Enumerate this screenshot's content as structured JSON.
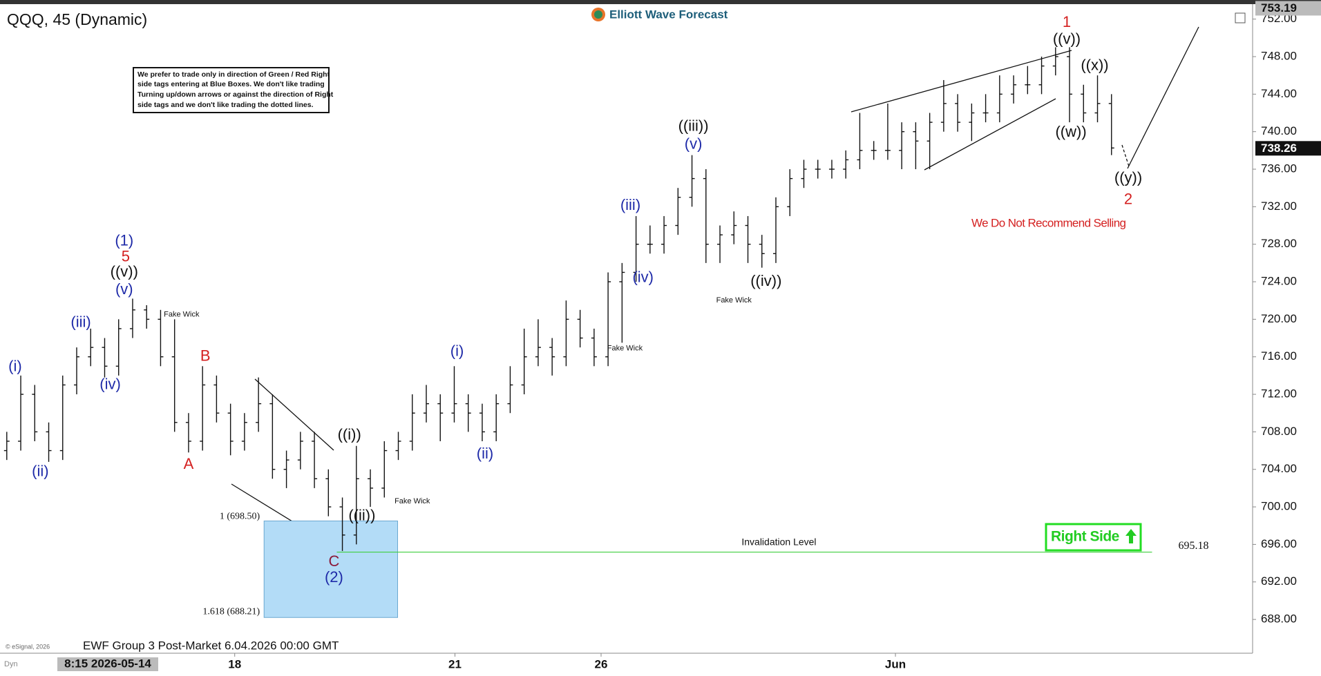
{
  "chart_data": {
    "type": "ohlc",
    "title": "QQQ, 45 (Dynamic)",
    "brand": "Elliott Wave Forecast",
    "footer": "EWF Group 3 Post-Market 6.04.2026 00:00 GMT",
    "copyright": "© eSignal, 2026",
    "cursor_label": "8:15 2026-05-14",
    "mode_label": "Dyn",
    "disclaimer": [
      "We prefer to trade only in direction of Green / Red Right",
      "side tags entering at Blue Boxes. We don't like trading",
      "Turning up/down arrows or against the direction of Right",
      "side tags and we don't like trading the dotted lines."
    ],
    "badge": "Right Side",
    "color": "#111111",
    "open": [
      706,
      707,
      712,
      708,
      706,
      713,
      716,
      717,
      715,
      719,
      721,
      720,
      716,
      709,
      707,
      713,
      710,
      707,
      709,
      711,
      704,
      705,
      707,
      703,
      700,
      697,
      703,
      702,
      706,
      707,
      710,
      711,
      710,
      711,
      710,
      708,
      711,
      713,
      716,
      717,
      716,
      720,
      718,
      716,
      724,
      725,
      728,
      728,
      730,
      733,
      735,
      728,
      729,
      730,
      728,
      727,
      732,
      735,
      736,
      736,
      736,
      737,
      738,
      738,
      738,
      740,
      739,
      741,
      743,
      741,
      742,
      742,
      744,
      745,
      745,
      747,
      748,
      744,
      742,
      743
    ],
    "high": [
      708,
      714,
      713,
      709,
      714,
      717,
      719,
      718,
      720,
      722.2,
      721.5,
      721,
      720,
      710,
      715,
      714,
      711,
      710,
      713.8,
      712,
      706,
      708,
      708,
      704,
      701,
      706.5,
      704,
      707,
      708,
      712,
      713,
      712,
      715,
      712,
      711,
      712,
      715,
      719,
      720,
      718,
      722,
      721,
      719,
      725,
      726,
      731,
      730,
      731,
      734,
      737.5,
      736,
      730,
      731.5,
      731,
      729,
      733,
      736,
      737,
      737,
      737,
      738,
      742,
      739,
      743,
      741,
      741,
      742,
      745.5,
      744,
      743,
      744,
      746,
      746,
      747,
      748,
      749,
      749,
      745,
      746,
      744
    ],
    "low": [
      705,
      706,
      707,
      704.8,
      705,
      712,
      715,
      713.8,
      714,
      718,
      719,
      715,
      708,
      705.8,
      706,
      709,
      705.5,
      706,
      708,
      703,
      702,
      704,
      702,
      699,
      695.3,
      696,
      700,
      701,
      705,
      706,
      709,
      707,
      709,
      708,
      707,
      707,
      710,
      712,
      715,
      714,
      715,
      717,
      715,
      715,
      717.5,
      724,
      727,
      727,
      729,
      732,
      726,
      726,
      728,
      726,
      725.5,
      726,
      731,
      734,
      735,
      735,
      735,
      736,
      737,
      737,
      736,
      736,
      736,
      740,
      740,
      739,
      741,
      741,
      743,
      744,
      744,
      746,
      741,
      741,
      741,
      737.5
    ],
    "close": [
      707,
      712,
      708,
      706,
      713,
      716,
      717,
      715,
      719,
      721,
      720,
      716,
      709,
      707,
      713,
      710,
      707,
      709,
      711,
      704,
      705,
      707,
      703,
      700,
      697,
      703,
      702,
      706,
      707,
      710,
      711,
      710,
      711,
      710,
      708,
      711,
      713,
      716,
      717,
      716,
      720,
      718,
      716,
      724,
      725,
      728,
      728,
      730,
      733,
      735,
      728,
      729,
      730,
      728,
      727,
      732,
      735,
      736,
      736,
      736,
      737,
      738,
      738,
      738,
      740,
      739,
      741,
      743,
      741,
      742,
      742,
      744,
      745,
      745,
      747,
      748,
      744,
      742,
      743,
      738.26
    ],
    "top_price": 753.19,
    "ylim": [
      684.4,
      753.3
    ],
    "yticks": [
      {
        "value": 688,
        "label": "688.00"
      },
      {
        "value": 692,
        "label": "692.00"
      },
      {
        "value": 696,
        "label": "696.00"
      },
      {
        "value": 700,
        "label": "700.00"
      },
      {
        "value": 704,
        "label": "704.00"
      },
      {
        "value": 708,
        "label": "708.00"
      },
      {
        "value": 712,
        "label": "712.00"
      },
      {
        "value": 716,
        "label": "716.00"
      },
      {
        "value": 720,
        "label": "720.00"
      },
      {
        "value": 724,
        "label": "724.00"
      },
      {
        "value": 728,
        "label": "728.00"
      },
      {
        "value": 732,
        "label": "732.00"
      },
      {
        "value": 736,
        "label": "736.00"
      },
      {
        "value": 740,
        "label": "740.00"
      },
      {
        "value": 744,
        "label": "744.00"
      },
      {
        "value": 748,
        "label": "748.00"
      },
      {
        "value": 752,
        "label": "752.00"
      }
    ],
    "xticks": [
      {
        "value": 16.3,
        "label": "18"
      },
      {
        "value": 32.05,
        "label": "21"
      },
      {
        "value": 42.5,
        "label": "26"
      },
      {
        "value": 63.55,
        "label": "Jun"
      }
    ],
    "box": {
      "top": 698.5,
      "top_label": "1 (698.50)",
      "bottom": 688.21,
      "bottom_label": "1.618 (688.21)",
      "x0": 18.4,
      "x1": 27.95,
      "color": "#b3dcf7"
    },
    "invalidation": {
      "value": 695.18,
      "text": "Invalidation Level",
      "x0": 23.6,
      "x1": 81.9,
      "color": "#3ecf3e"
    },
    "annotations": [
      {
        "text": "(i)",
        "x": 0.6,
        "y": 714.9,
        "color": "#1e2aa8"
      },
      {
        "text": "(ii)",
        "x": 2.4,
        "y": 703.7,
        "color": "#1e2aa8"
      },
      {
        "text": "(iii)",
        "x": 5.3,
        "y": 719.6,
        "color": "#1e2aa8"
      },
      {
        "text": "(iv)",
        "x": 7.4,
        "y": 713.0,
        "color": "#1e2aa8"
      },
      {
        "text": "(v)",
        "x": 8.4,
        "y": 723.1,
        "color": "#1e2aa8"
      },
      {
        "text": "((v))",
        "x": 8.4,
        "y": 725.0,
        "color": "#111111"
      },
      {
        "text": "5",
        "x": 8.5,
        "y": 726.6,
        "color": "#d42020"
      },
      {
        "text": "(1)",
        "x": 8.4,
        "y": 728.3,
        "color": "#1e2aa8"
      },
      {
        "text": "Fake Wick",
        "x": 12.5,
        "y": 720.5,
        "color": "#111111",
        "small": true
      },
      {
        "text": "B",
        "x": 14.2,
        "y": 716.0,
        "color": "#d42020"
      },
      {
        "text": "A",
        "x": 13.0,
        "y": 704.5,
        "color": "#d42020"
      },
      {
        "text": "((i))",
        "x": 24.5,
        "y": 707.6,
        "color": "#111111"
      },
      {
        "text": "((ii))",
        "x": 25.4,
        "y": 699.0,
        "color": "#111111"
      },
      {
        "text": "C",
        "x": 23.4,
        "y": 694.1,
        "color": "#8b1a3a"
      },
      {
        "text": "(2)",
        "x": 23.4,
        "y": 692.4,
        "color": "#1e2aa8"
      },
      {
        "text": "Fake Wick",
        "x": 29.0,
        "y": 700.6,
        "color": "#111111",
        "small": true
      },
      {
        "text": "(i)",
        "x": 32.2,
        "y": 716.5,
        "color": "#1e2aa8"
      },
      {
        "text": "(ii)",
        "x": 34.2,
        "y": 705.6,
        "color": "#1e2aa8"
      },
      {
        "text": "(iii)",
        "x": 44.6,
        "y": 732.1,
        "color": "#1e2aa8"
      },
      {
        "text": "(iv)",
        "x": 45.5,
        "y": 724.4,
        "color": "#1e2aa8"
      },
      {
        "text": "Fake Wick",
        "x": 44.2,
        "y": 716.9,
        "color": "#111111",
        "small": true
      },
      {
        "text": "(v)",
        "x": 49.1,
        "y": 738.6,
        "color": "#1e2aa8"
      },
      {
        "text": "((iii))",
        "x": 49.1,
        "y": 740.5,
        "color": "#111111"
      },
      {
        "text": "Fake Wick",
        "x": 52.0,
        "y": 722.0,
        "color": "#111111",
        "small": true
      },
      {
        "text": "((iv))",
        "x": 54.3,
        "y": 724.0,
        "color": "#111111"
      },
      {
        "text": "((v))",
        "x": 75.8,
        "y": 749.8,
        "color": "#111111"
      },
      {
        "text": "1",
        "x": 75.8,
        "y": 751.6,
        "color": "#d42020"
      },
      {
        "text": "((w))",
        "x": 76.1,
        "y": 739.9,
        "color": "#111111"
      },
      {
        "text": "((x))",
        "x": 77.8,
        "y": 747.0,
        "color": "#111111"
      },
      {
        "text": "((y))",
        "x": 80.2,
        "y": 735.0,
        "color": "#111111"
      },
      {
        "text": "2",
        "x": 80.2,
        "y": 732.7,
        "color": "#d42020"
      },
      {
        "text": "We Do Not Recommend Selling",
        "x": 74.5,
        "y": 730.2,
        "color": "#d42020",
        "medium": true
      }
    ]
  }
}
